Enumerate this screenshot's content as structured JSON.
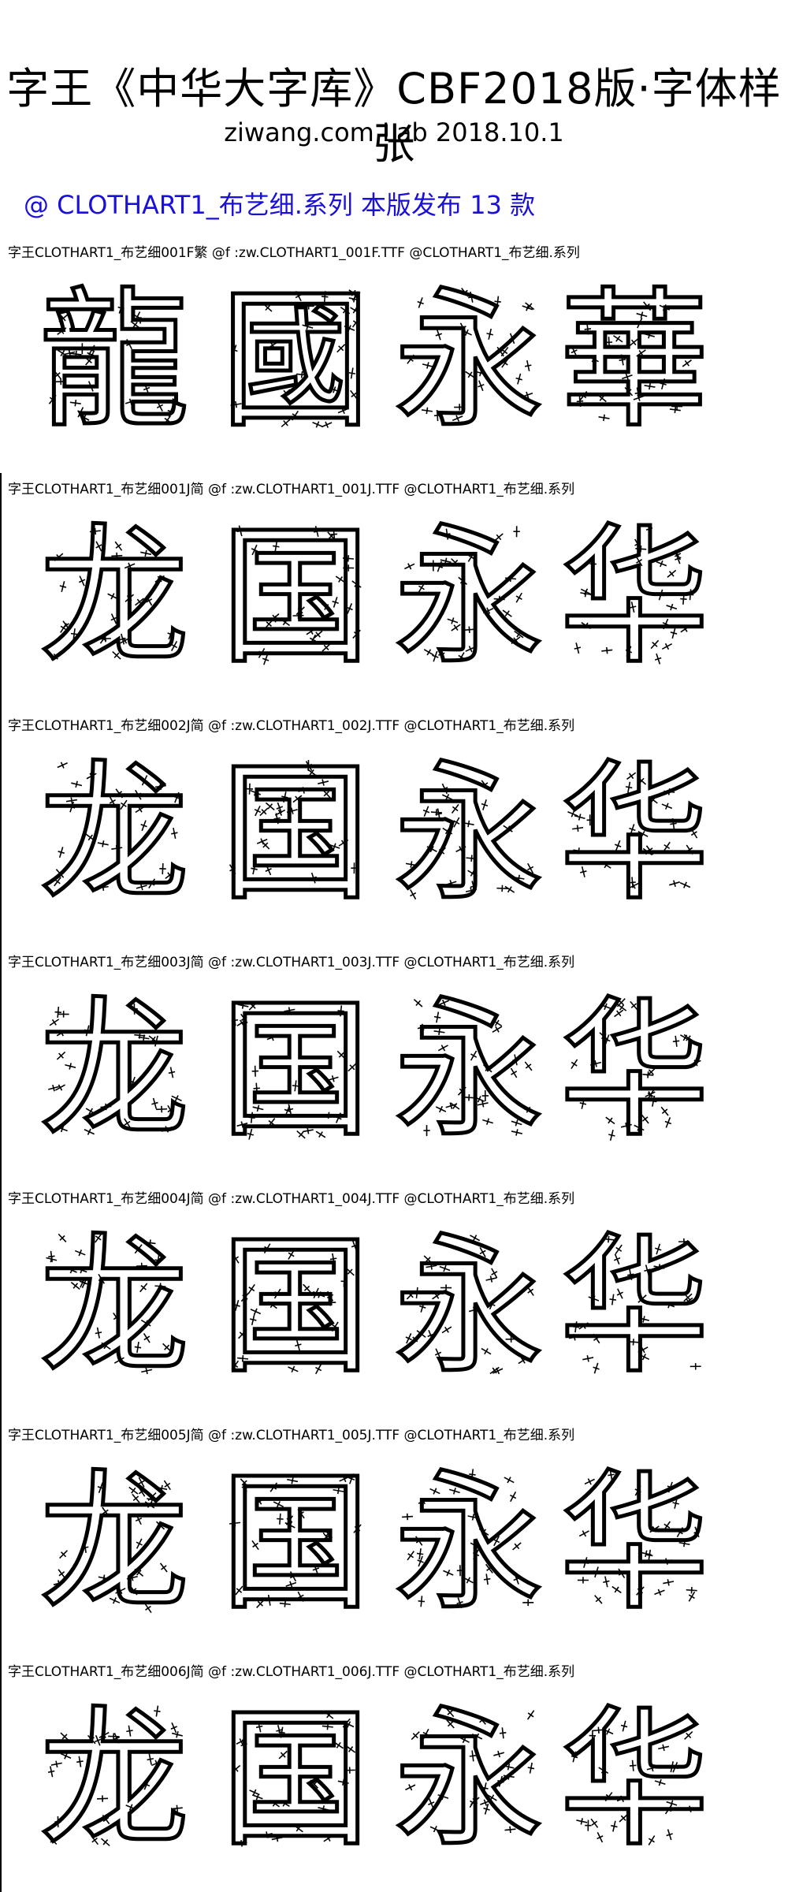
{
  "header": {
    "title": "字王《中华大字库》CBF2018版·字体样张",
    "subtitle": "ziwang.com Lab 2018.10.1",
    "series": "@ CLOTHART1_布艺细.系列 本版发布 13 款"
  },
  "samples": [
    {
      "caption": "字王CLOTHART1_布艺细001F繁 @f :zw.CLOTHART1_001F.TTF @CLOTHART1_布艺细.系列",
      "glyphs": [
        "龍",
        "國",
        "永",
        "華"
      ]
    },
    {
      "caption": "字王CLOTHART1_布艺细001J简 @f :zw.CLOTHART1_001J.TTF @CLOTHART1_布艺细.系列",
      "glyphs": [
        "龙",
        "国",
        "永",
        "华"
      ]
    },
    {
      "caption": "字王CLOTHART1_布艺细002J简 @f :zw.CLOTHART1_002J.TTF @CLOTHART1_布艺细.系列",
      "glyphs": [
        "龙",
        "国",
        "永",
        "华"
      ]
    },
    {
      "caption": "字王CLOTHART1_布艺细003J简 @f :zw.CLOTHART1_003J.TTF @CLOTHART1_布艺细.系列",
      "glyphs": [
        "龙",
        "国",
        "永",
        "华"
      ]
    },
    {
      "caption": "字王CLOTHART1_布艺细004J简 @f :zw.CLOTHART1_004J.TTF @CLOTHART1_布艺细.系列",
      "glyphs": [
        "龙",
        "国",
        "永",
        "华"
      ]
    },
    {
      "caption": "字王CLOTHART1_布艺细005J简 @f :zw.CLOTHART1_005J.TTF @CLOTHART1_布艺细.系列",
      "glyphs": [
        "龙",
        "国",
        "永",
        "华"
      ]
    },
    {
      "caption": "字王CLOTHART1_布艺细006J简 @f :zw.CLOTHART1_006J.TTF @CLOTHART1_布艺细.系列",
      "glyphs": [
        "龙",
        "国",
        "永",
        "华"
      ]
    }
  ],
  "colors": {
    "series_heading": "#1a10d6",
    "text": "#000000",
    "background": "#ffffff"
  }
}
